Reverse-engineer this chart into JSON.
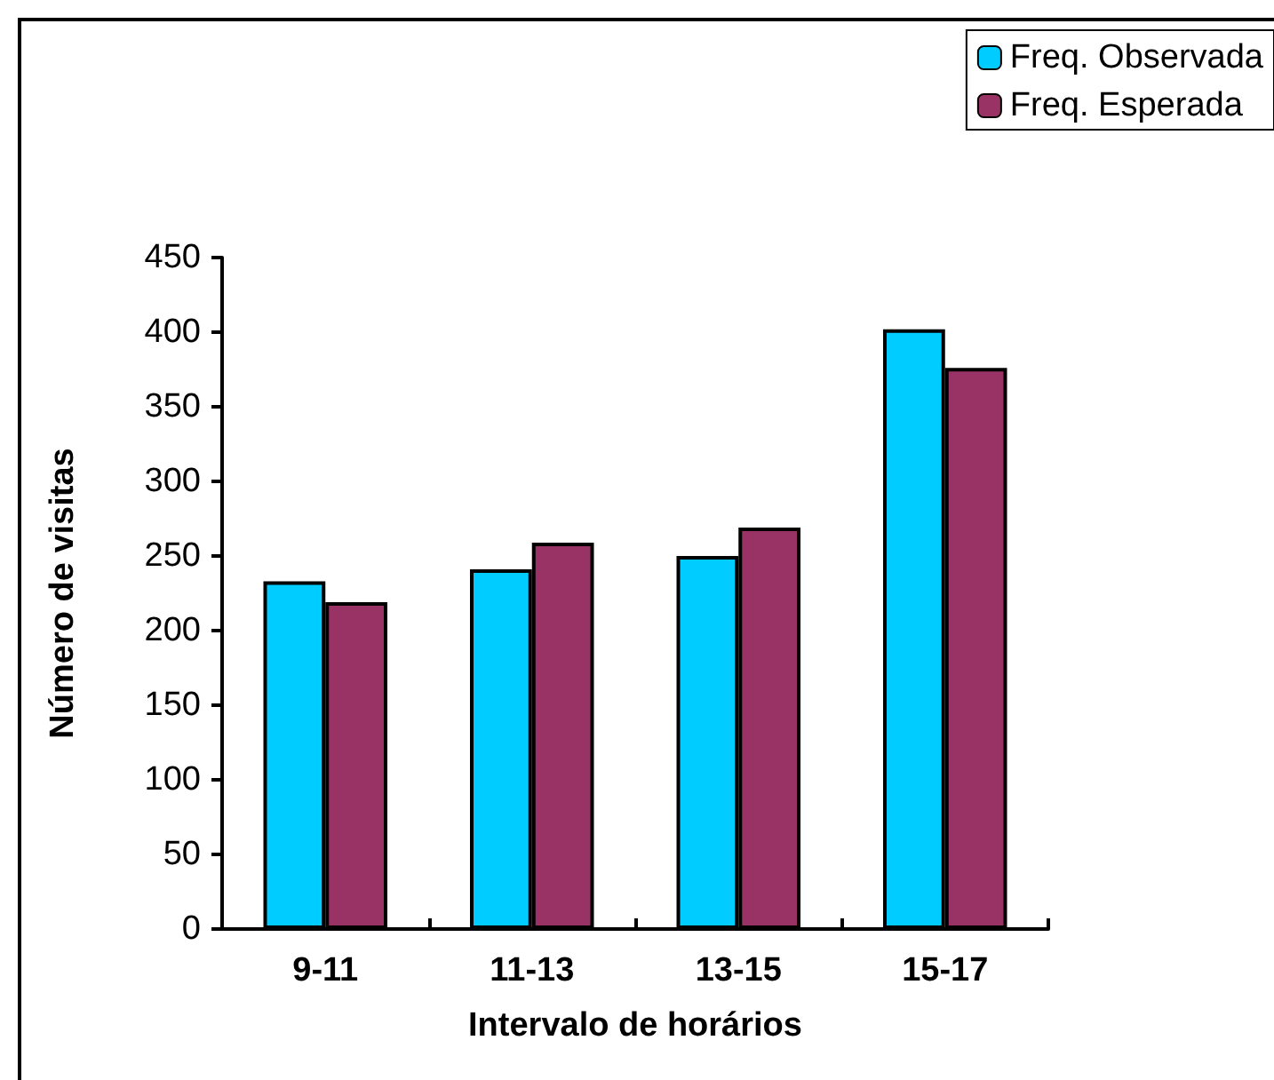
{
  "chart_data": {
    "type": "bar",
    "xlabel": "Intervalo de horários",
    "ylabel": "Número de visitas",
    "categories": [
      "9-11",
      "11-13",
      "13-15",
      "15-17"
    ],
    "series": [
      {
        "name": "Freq. Observada",
        "color": "#00ccff",
        "values": [
          233,
          241,
          250,
          402
        ]
      },
      {
        "name": "Freq. Esperada",
        "color": "#993366",
        "values": [
          219,
          259,
          269,
          376
        ]
      }
    ],
    "ylim": [
      0,
      450
    ],
    "yticks": [
      0,
      50,
      100,
      150,
      200,
      250,
      300,
      350,
      400,
      450
    ],
    "grid": false,
    "legend": "top right"
  }
}
